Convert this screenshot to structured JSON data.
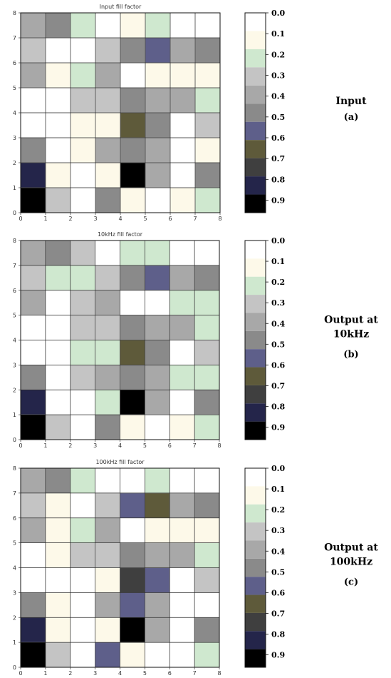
{
  "colorbar": {
    "labels": [
      "0.0",
      "0.1",
      "0.2",
      "0.3",
      "0.4",
      "0.5",
      "0.6",
      "0.7",
      "0.8",
      "0.9"
    ],
    "colors": [
      "#ffffff",
      "#fdf9e9",
      "#cfe8cf",
      "#c4c4c4",
      "#a8a8a8",
      "#8a8a8a",
      "#5e5f8a",
      "#5e5a3a",
      "#3f3f3f",
      "#24254a",
      "#000000"
    ]
  },
  "chart_data": [
    {
      "type": "heatmap",
      "title": "Input fill factor",
      "side_label": "Input",
      "side_sub": "(a)",
      "xlim": [
        0,
        8
      ],
      "ylim": [
        0,
        8
      ],
      "xticks": [
        "0",
        "1",
        "2",
        "3",
        "4",
        "5",
        "6",
        "7",
        "8"
      ],
      "yticks": [
        "0",
        "1",
        "2",
        "3",
        "4",
        "5",
        "6",
        "7",
        "8"
      ],
      "rows_top_to_bottom": [
        [
          4,
          5,
          2,
          0,
          1,
          2,
          0,
          0
        ],
        [
          3,
          0,
          0,
          3,
          5,
          6,
          4,
          5
        ],
        [
          4,
          1,
          2,
          4,
          0,
          1,
          1,
          1
        ],
        [
          0,
          0,
          3,
          3,
          5,
          4,
          4,
          2
        ],
        [
          0,
          0,
          1,
          1,
          7,
          5,
          0,
          3
        ],
        [
          5,
          0,
          1,
          4,
          5,
          4,
          0,
          1
        ],
        [
          9,
          1,
          0,
          1,
          10,
          4,
          0,
          5
        ],
        [
          10,
          3,
          0,
          5,
          1,
          0,
          1,
          2
        ]
      ]
    },
    {
      "type": "heatmap",
      "title": "10kHz fill factor",
      "side_label": "Output at",
      "side_label2": "10kHz",
      "side_sub": "(b)",
      "xlim": [
        0,
        8
      ],
      "ylim": [
        0,
        8
      ],
      "xticks": [
        "0",
        "1",
        "2",
        "3",
        "4",
        "5",
        "6",
        "7",
        "8"
      ],
      "yticks": [
        "0",
        "1",
        "2",
        "3",
        "4",
        "5",
        "6",
        "7",
        "8"
      ],
      "rows_top_to_bottom": [
        [
          4,
          5,
          3,
          0,
          2,
          2,
          0,
          0
        ],
        [
          3,
          2,
          2,
          3,
          5,
          6,
          4,
          5
        ],
        [
          4,
          0,
          3,
          4,
          0,
          0,
          2,
          2
        ],
        [
          0,
          0,
          3,
          3,
          5,
          4,
          4,
          2
        ],
        [
          0,
          0,
          2,
          2,
          7,
          5,
          0,
          3
        ],
        [
          5,
          0,
          3,
          4,
          5,
          4,
          2,
          2
        ],
        [
          9,
          0,
          0,
          2,
          10,
          4,
          0,
          5
        ],
        [
          10,
          3,
          0,
          5,
          1,
          0,
          1,
          2
        ]
      ]
    },
    {
      "type": "heatmap",
      "title": "100kHz fill factor",
      "side_label": "Output at",
      "side_label2": "100kHz",
      "side_sub": "(c)",
      "xlim": [
        0,
        8
      ],
      "ylim": [
        0,
        8
      ],
      "xticks": [
        "0",
        "1",
        "2",
        "3",
        "4",
        "5",
        "6",
        "7",
        "8"
      ],
      "yticks": [
        "0",
        "1",
        "2",
        "3",
        "4",
        "5",
        "6",
        "7",
        "8"
      ],
      "rows_top_to_bottom": [
        [
          4,
          5,
          2,
          0,
          0,
          2,
          0,
          0
        ],
        [
          3,
          1,
          0,
          3,
          6,
          7,
          4,
          5
        ],
        [
          4,
          1,
          2,
          4,
          0,
          1,
          1,
          1
        ],
        [
          0,
          1,
          3,
          3,
          5,
          4,
          4,
          2
        ],
        [
          0,
          0,
          0,
          1,
          8,
          6,
          0,
          3
        ],
        [
          5,
          1,
          0,
          4,
          6,
          4,
          0,
          0
        ],
        [
          9,
          1,
          0,
          1,
          10,
          4,
          0,
          5
        ],
        [
          10,
          3,
          0,
          6,
          1,
          0,
          0,
          2
        ]
      ]
    }
  ]
}
